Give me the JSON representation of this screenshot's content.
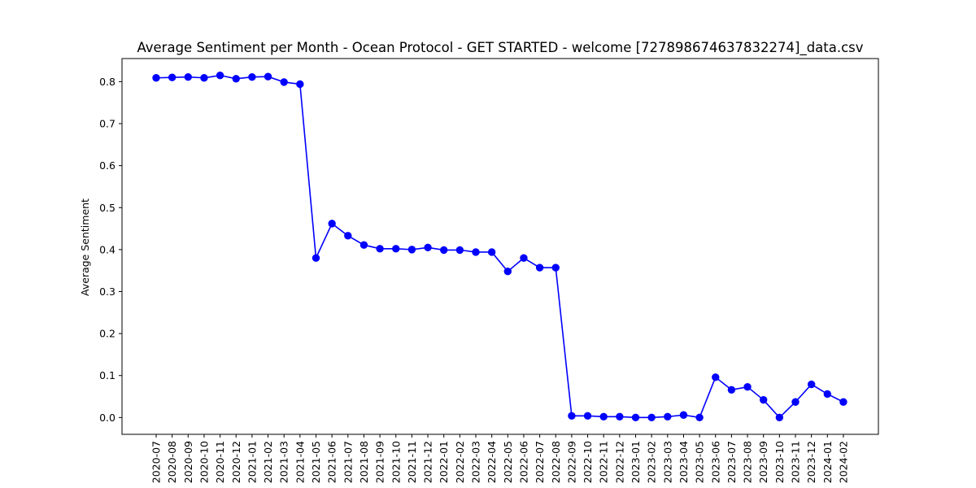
{
  "chart_data": {
    "type": "line",
    "title": "Average Sentiment per Month - Ocean Protocol - GET STARTED - welcome [727898674637832274]_data.csv",
    "xlabel": "",
    "ylabel": "Average Sentiment",
    "ylim": [
      -0.04,
      0.855
    ],
    "yticks": [
      0.0,
      0.1,
      0.2,
      0.3,
      0.4,
      0.5,
      0.6,
      0.7,
      0.8
    ],
    "ytick_labels": [
      "0.0",
      "0.1",
      "0.2",
      "0.3",
      "0.4",
      "0.5",
      "0.6",
      "0.7",
      "0.8"
    ],
    "grid": false,
    "line_color": "#0000ff",
    "marker": "circle",
    "categories": [
      "2020-07",
      "2020-08",
      "2020-09",
      "2020-10",
      "2020-11",
      "2020-12",
      "2021-01",
      "2021-02",
      "2021-03",
      "2021-04",
      "2021-05",
      "2021-06",
      "2021-07",
      "2021-08",
      "2021-09",
      "2021-10",
      "2021-11",
      "2021-12",
      "2022-01",
      "2022-02",
      "2022-03",
      "2022-04",
      "2022-05",
      "2022-06",
      "2022-07",
      "2022-08",
      "2022-09",
      "2022-10",
      "2022-11",
      "2022-12",
      "2023-01",
      "2023-02",
      "2023-03",
      "2023-04",
      "2023-05",
      "2023-06",
      "2023-07",
      "2023-08",
      "2023-09",
      "2023-10",
      "2023-11",
      "2023-12",
      "2024-01",
      "2024-02"
    ],
    "series": [
      {
        "values": [
          0.809,
          0.81,
          0.811,
          0.809,
          0.815,
          0.807,
          0.811,
          0.812,
          0.799,
          0.794,
          0.38,
          0.462,
          0.433,
          0.411,
          0.402,
          0.402,
          0.4,
          0.405,
          0.399,
          0.399,
          0.394,
          0.394,
          0.348,
          0.38,
          0.357,
          0.357,
          0.004,
          0.004,
          0.002,
          0.002,
          0.0,
          0.0,
          0.002,
          0.006,
          0.0,
          0.096,
          0.066,
          0.073,
          0.042,
          0.0,
          0.037,
          0.079,
          0.056,
          0.037
        ]
      }
    ]
  }
}
